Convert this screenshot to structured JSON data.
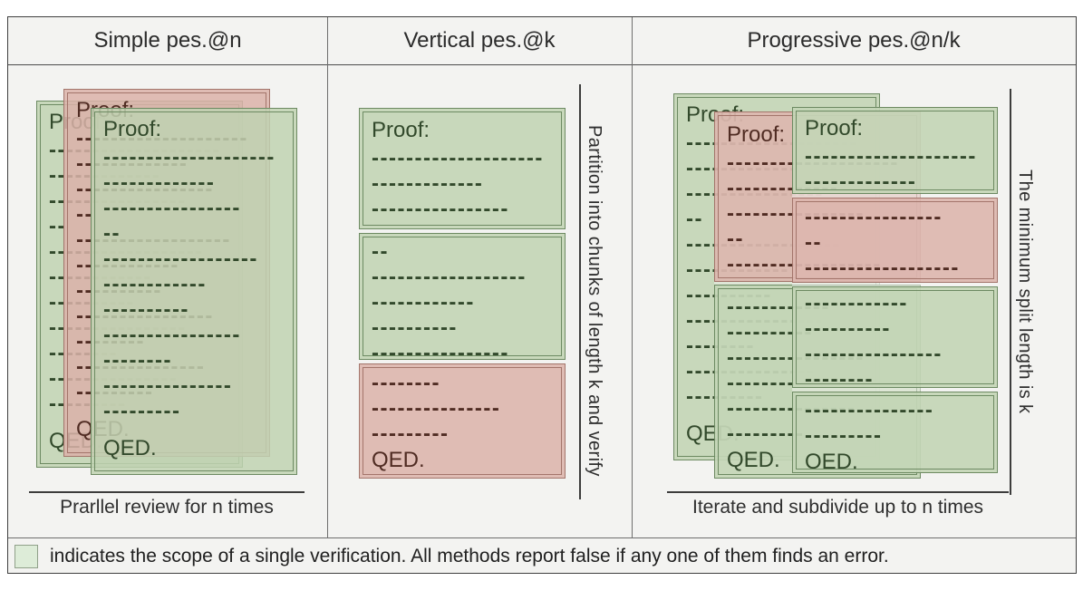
{
  "headers": [
    "Simple pes.@n",
    "Vertical pes.@k",
    "Progressive pes.@n/k"
  ],
  "captions": {
    "simple": "Prarllel review for n times",
    "progressive": "Iterate and subdivide up to n times"
  },
  "annotations": {
    "vertical": "Partition into chunks of length k and verify",
    "progressive": "The minimum split length is k"
  },
  "proof": {
    "title": "Proof:",
    "qed": "QED.",
    "lines": [
      "--------------------",
      "-------------",
      "----------------",
      "--",
      "------------------",
      "------------",
      "----------",
      "----------------",
      "--------",
      "---------------",
      "---------"
    ]
  },
  "legend": {
    "text": "indicates the scope of a single verification. All methods report false if any one of them finds an error."
  },
  "colors": {
    "figure_bg": "#f3f3f1",
    "line_color": "#3c3c3c",
    "text_color": "#2e2e2e",
    "green_fill": "rgba(191,210,178,0.85)",
    "green_border": "#6d8a62",
    "green_text": "#32492b",
    "red_fill": "rgba(218,178,169,0.85)",
    "red_border": "#a3756b",
    "red_text": "#502c23",
    "legend_swatch_fill": "#ddecd8",
    "legend_swatch_border": "#8fa089"
  }
}
